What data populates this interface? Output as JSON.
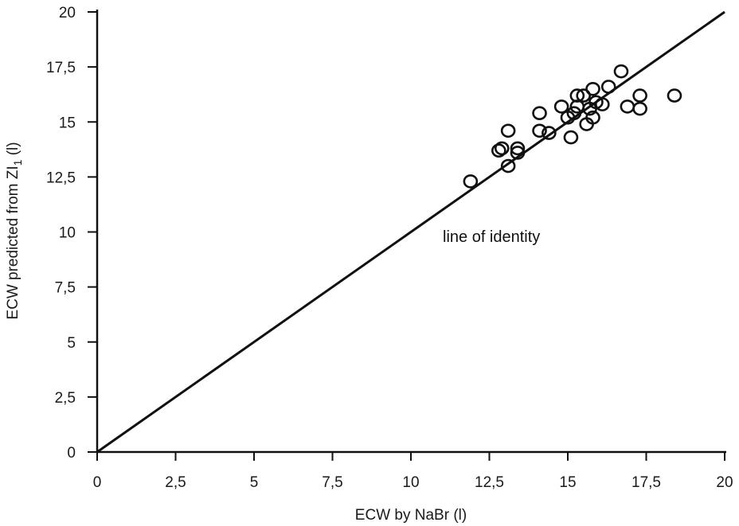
{
  "chart_data": {
    "type": "scatter",
    "title": "",
    "xlabel": "ECW by NaBr (l)",
    "ylabel_prefix": "ECW predicted from ZI",
    "ylabel_subscript": "1",
    "ylabel_suffix": " (l)",
    "xlim": [
      0,
      20
    ],
    "ylim": [
      0,
      20
    ],
    "xticks": [
      "0",
      "2,5",
      "5",
      "7,5",
      "10",
      "12,5",
      "15",
      "17,5",
      "20"
    ],
    "yticks": [
      "0",
      "2,5",
      "5",
      "7,5",
      "10",
      "12,5",
      "15",
      "17,5",
      "20"
    ],
    "grid": false,
    "reference_line": {
      "label": "line of identity",
      "from": [
        0,
        0
      ],
      "to": [
        20,
        20
      ]
    },
    "series": [
      {
        "marker": "open-circle",
        "points": [
          [
            11.9,
            12.3
          ],
          [
            12.8,
            13.7
          ],
          [
            12.9,
            13.8
          ],
          [
            13.1,
            14.6
          ],
          [
            13.1,
            13.0
          ],
          [
            13.4,
            13.8
          ],
          [
            13.4,
            13.6
          ],
          [
            14.1,
            15.4
          ],
          [
            14.1,
            14.6
          ],
          [
            14.4,
            14.5
          ],
          [
            14.8,
            15.7
          ],
          [
            15.0,
            15.2
          ],
          [
            15.1,
            14.3
          ],
          [
            15.2,
            15.4
          ],
          [
            15.3,
            16.2
          ],
          [
            15.3,
            15.7
          ],
          [
            15.5,
            16.2
          ],
          [
            15.6,
            14.9
          ],
          [
            15.7,
            15.6
          ],
          [
            15.8,
            15.2
          ],
          [
            15.8,
            16.5
          ],
          [
            15.9,
            15.9
          ],
          [
            16.1,
            15.8
          ],
          [
            16.3,
            16.6
          ],
          [
            16.7,
            17.3
          ],
          [
            16.9,
            15.7
          ],
          [
            17.3,
            16.2
          ],
          [
            17.3,
            15.6
          ],
          [
            18.4,
            16.2
          ]
        ]
      }
    ]
  }
}
